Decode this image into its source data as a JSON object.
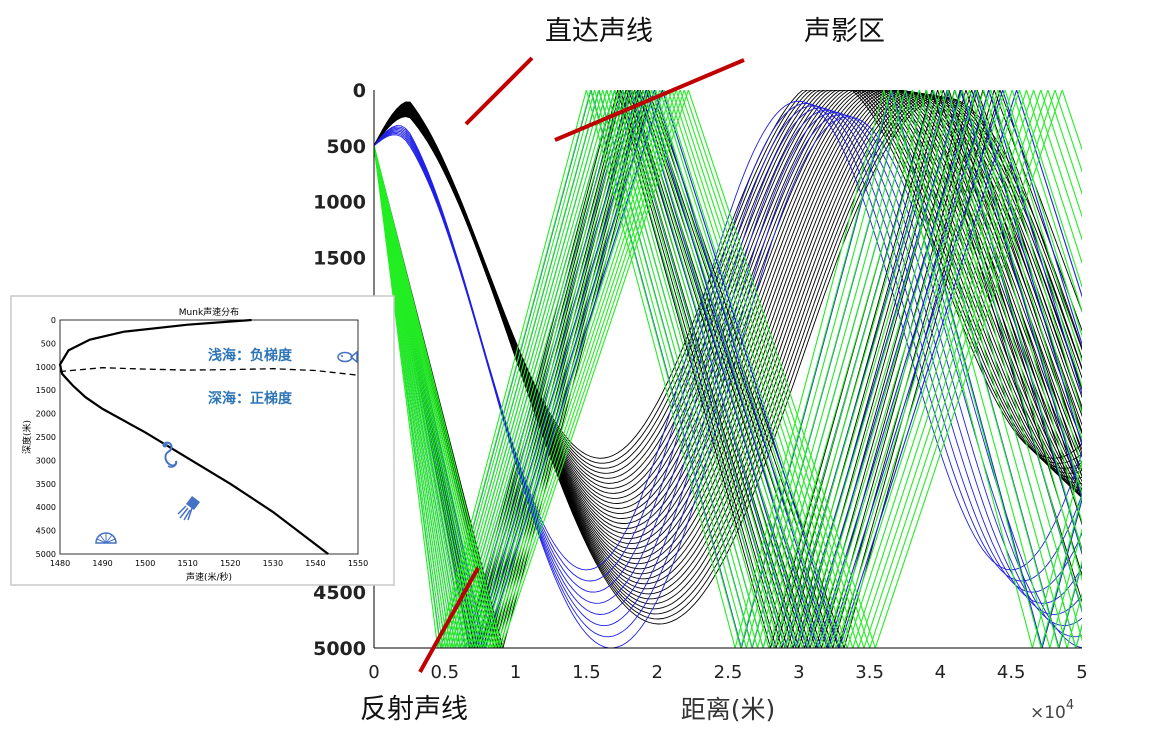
{
  "colors": {
    "black_rays": "#000000",
    "blue_rays": "#1f1fe6",
    "green_rays": "#22ee22",
    "annotation_line": "#c00000",
    "inset_text": "#2e75b6",
    "inset_icons": "#4472c4"
  },
  "chart_data": [
    {
      "type": "line",
      "description_kind": "ray-trace",
      "xlabel": "距离(米)",
      "ylabel": "",
      "x_multiplier": "×10⁴",
      "x_multiplier_base": "×10",
      "x_multiplier_exp": "4",
      "xlim": [
        0,
        5
      ],
      "ylim": [
        5000,
        0
      ],
      "y_reversed": true,
      "x_ticks": [
        "0",
        "0.5",
        "1",
        "1.5",
        "2",
        "2.5",
        "3",
        "3.5",
        "4",
        "4.5",
        "5"
      ],
      "y_ticks": [
        "0",
        "500",
        "1000",
        "1500",
        "4500",
        "5000"
      ],
      "source_depth": 500,
      "series_colors": [
        "black",
        "blue",
        "green"
      ],
      "annotations": [
        "直达声线",
        "声影区",
        "反射声线"
      ]
    },
    {
      "type": "line",
      "title": "Munk声速分布",
      "xlabel": "声速(米/秒)",
      "ylabel": "深度(米)",
      "xlim": [
        1480,
        1550
      ],
      "ylim": [
        5000,
        0
      ],
      "x_ticks": [
        "1480",
        "1490",
        "1500",
        "1510",
        "1520",
        "1530",
        "1540",
        "1550"
      ],
      "y_ticks": [
        "0",
        "500",
        "1000",
        "1500",
        "2000",
        "2500",
        "3000",
        "3500",
        "4000",
        "4500",
        "5000"
      ],
      "series": [
        {
          "x": [
            1525,
            1510,
            1495,
            1487,
            1482,
            1480,
            1480.5,
            1483,
            1486,
            1490,
            1500,
            1510,
            1520,
            1530,
            1543
          ],
          "y": [
            0,
            100,
            250,
            420,
            650,
            950,
            1150,
            1400,
            1650,
            1900,
            2400,
            2950,
            3500,
            4100,
            5000
          ]
        }
      ],
      "divider": {
        "x": [
          1480,
          1490,
          1500,
          1510,
          1520,
          1530,
          1540,
          1550
        ],
        "y": [
          1100,
          1020,
          1050,
          1070,
          1060,
          1040,
          1080,
          1180
        ]
      },
      "labels": {
        "shallow": "浅海：负梯度",
        "deep": "深海：正梯度"
      }
    }
  ]
}
